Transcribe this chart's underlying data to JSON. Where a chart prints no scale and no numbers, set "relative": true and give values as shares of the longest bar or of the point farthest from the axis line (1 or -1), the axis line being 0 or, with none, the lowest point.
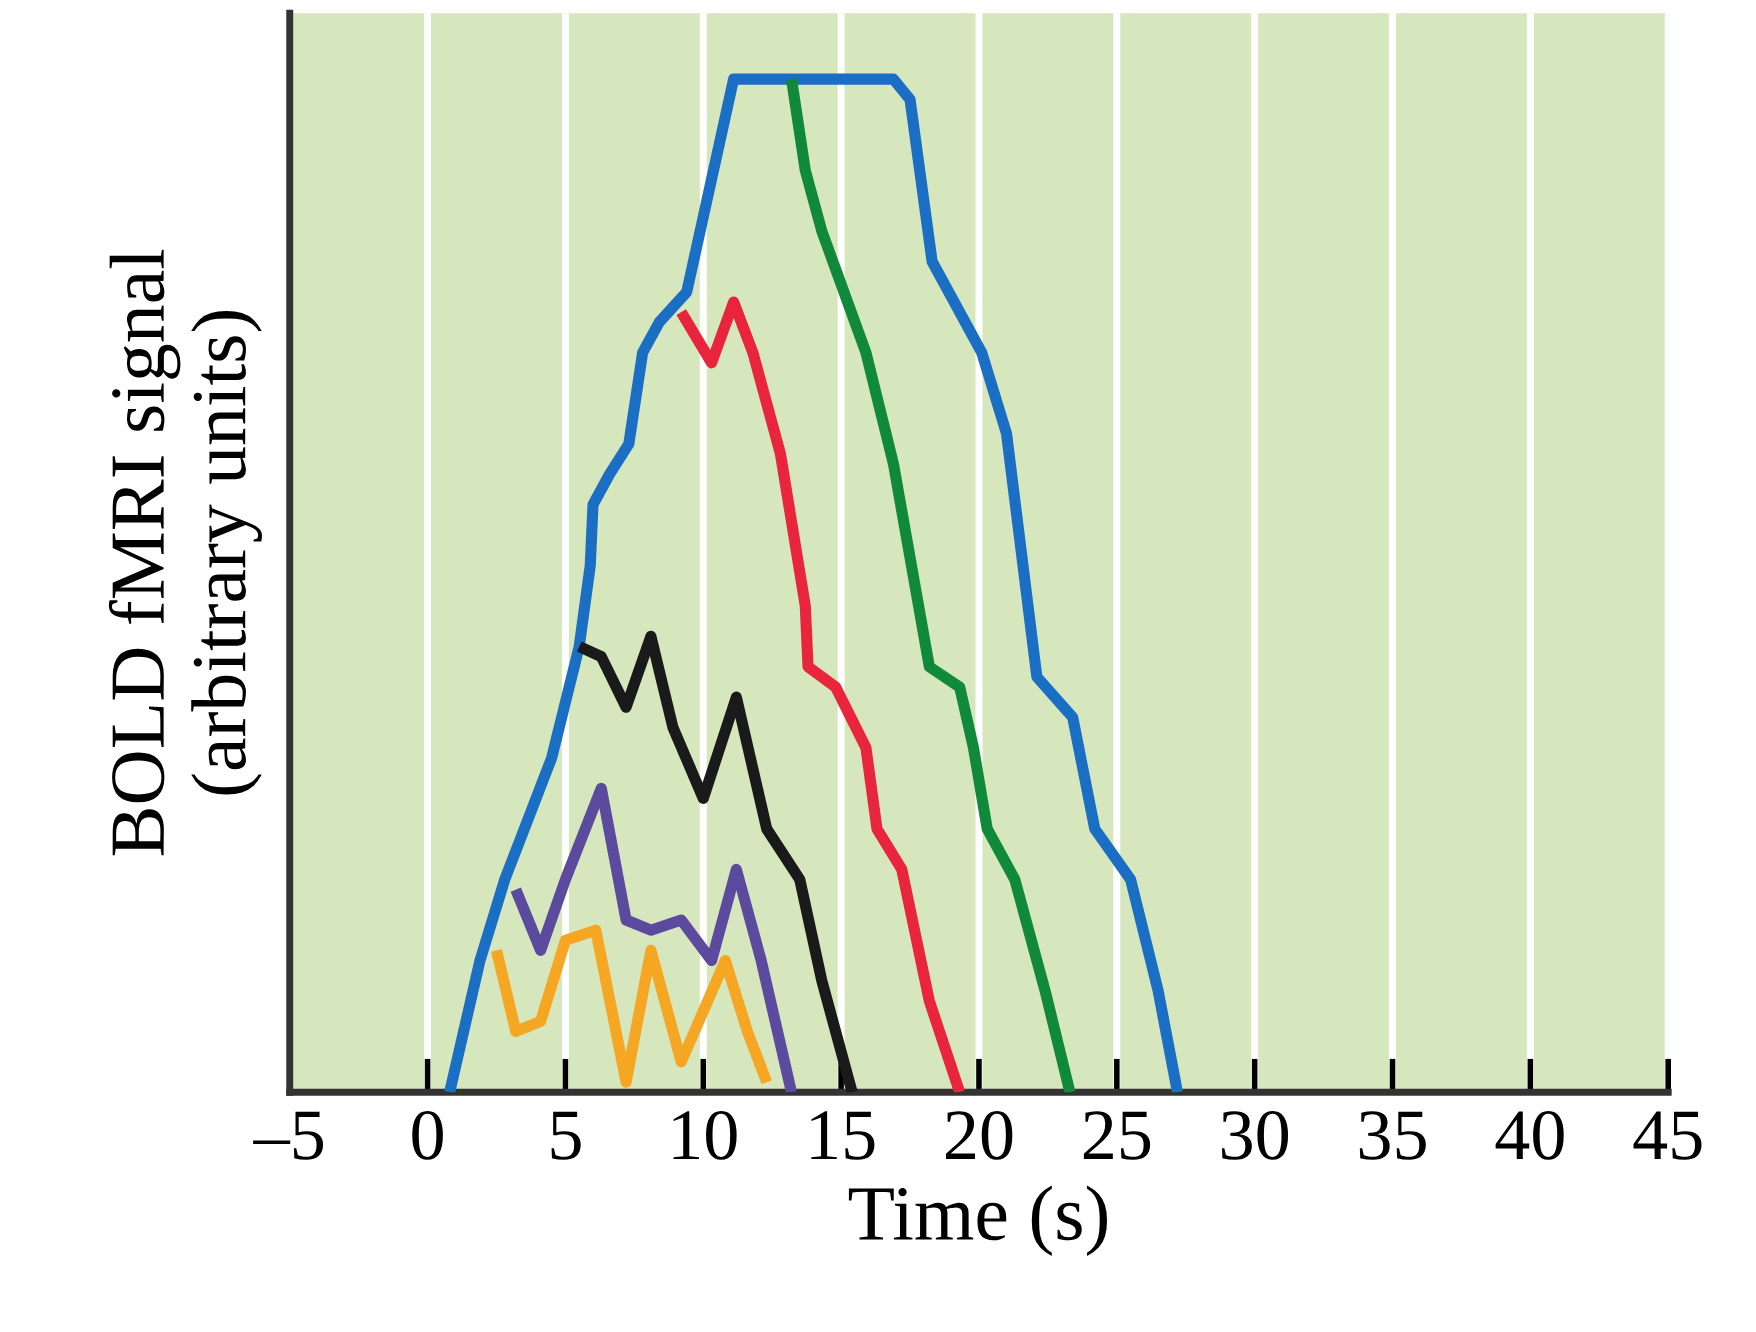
{
  "chart_data": {
    "type": "line",
    "xlabel": "Time (s)",
    "ylabel": "BOLD fMRI signal\n(arbitrary units)",
    "relative": true,
    "grid": "x",
    "marker": "none",
    "line_style": "solid",
    "xlim": [
      -5,
      45
    ],
    "xticks": [
      {
        "value": -5,
        "label": "–5"
      },
      0,
      5,
      10,
      15,
      20,
      25,
      30,
      35,
      40,
      45
    ],
    "series": [
      {
        "color": "#1a6fc4",
        "x": [
          0.8,
          1.9,
          2.8,
          4.5,
          5.5,
          5.9,
          6.0,
          6.6,
          7.3,
          7.8,
          8.4,
          9.4,
          11.1,
          16.9,
          17.5,
          18.3,
          20.1,
          21.0,
          22.1,
          23.4,
          24.2,
          25.5,
          26.5,
          27.2
        ],
        "values": [
          0,
          0.13,
          0.21,
          0.33,
          0.44,
          0.52,
          0.58,
          0.61,
          0.64,
          0.73,
          0.76,
          0.79,
          1.0,
          1.0,
          0.98,
          0.82,
          0.73,
          0.65,
          0.41,
          0.37,
          0.26,
          0.21,
          0.1,
          0
        ]
      },
      {
        "color": "#10893a",
        "x": [
          13.2,
          13.7,
          14.3,
          15.9,
          16.9,
          18.2,
          19.3,
          19.8,
          20.3,
          21.3,
          22.4,
          23.3
        ],
        "values": [
          1.0,
          0.91,
          0.85,
          0.73,
          0.62,
          0.42,
          0.4,
          0.34,
          0.26,
          0.21,
          0.1,
          0
        ]
      },
      {
        "color": "#e8253c",
        "x": [
          9.2,
          10.3,
          11.1,
          11.8,
          12.8,
          13.7,
          13.8,
          14.8,
          15.9,
          16.3,
          17.2,
          18.2,
          19.3
        ],
        "values": [
          0.77,
          0.72,
          0.78,
          0.73,
          0.63,
          0.48,
          0.42,
          0.4,
          0.34,
          0.26,
          0.22,
          0.09,
          0
        ]
      },
      {
        "color": "#1a1a1a",
        "x": [
          5.5,
          6.3,
          7.2,
          8.1,
          8.9,
          10.0,
          11.2,
          12.3,
          13.5,
          14.3,
          15.4
        ],
        "values": [
          0.44,
          0.43,
          0.38,
          0.45,
          0.36,
          0.29,
          0.39,
          0.26,
          0.21,
          0.11,
          0
        ]
      },
      {
        "color": "#5b4a9e",
        "x": [
          3.2,
          4.1,
          5.0,
          6.3,
          7.2,
          8.1,
          9.2,
          10.3,
          11.2,
          12.1,
          13.2
        ],
        "values": [
          0.2,
          0.14,
          0.21,
          0.3,
          0.17,
          0.16,
          0.17,
          0.13,
          0.22,
          0.13,
          0
        ]
      },
      {
        "color": "#f5a623",
        "x": [
          2.5,
          3.2,
          4.1,
          5.0,
          6.1,
          7.2,
          8.1,
          9.2,
          10.8,
          11.6,
          12.3
        ],
        "values": [
          0.14,
          0.06,
          0.07,
          0.15,
          0.16,
          0.01,
          0.14,
          0.03,
          0.13,
          0.06,
          0.01
        ]
      }
    ]
  }
}
